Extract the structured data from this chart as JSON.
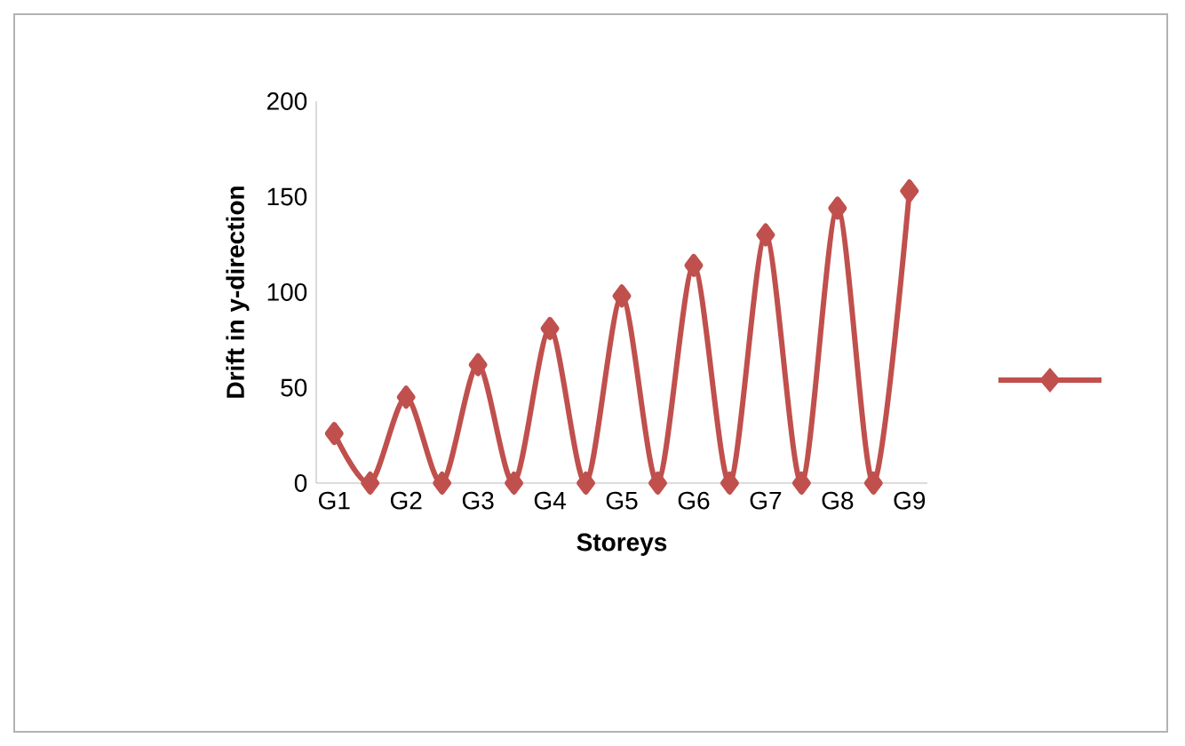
{
  "chart_data": {
    "type": "line",
    "xlabel": "Storeys",
    "ylabel": "Drift in y-direction",
    "categories": [
      "G1",
      null,
      "G2",
      null,
      "G3",
      null,
      "G4",
      null,
      "G5",
      null,
      "G6",
      null,
      "G7",
      null,
      "G8",
      null,
      "G9"
    ],
    "series": [
      {
        "color": "#c0504d",
        "values": [
          26,
          0,
          45,
          0,
          62,
          0,
          81,
          0,
          98,
          0,
          114,
          0,
          130,
          0,
          144,
          0,
          153
        ]
      }
    ],
    "ylim": [
      0,
      200
    ],
    "yticks": [
      0,
      50,
      100,
      150,
      200
    ],
    "marker": "diamond",
    "grid": false
  }
}
